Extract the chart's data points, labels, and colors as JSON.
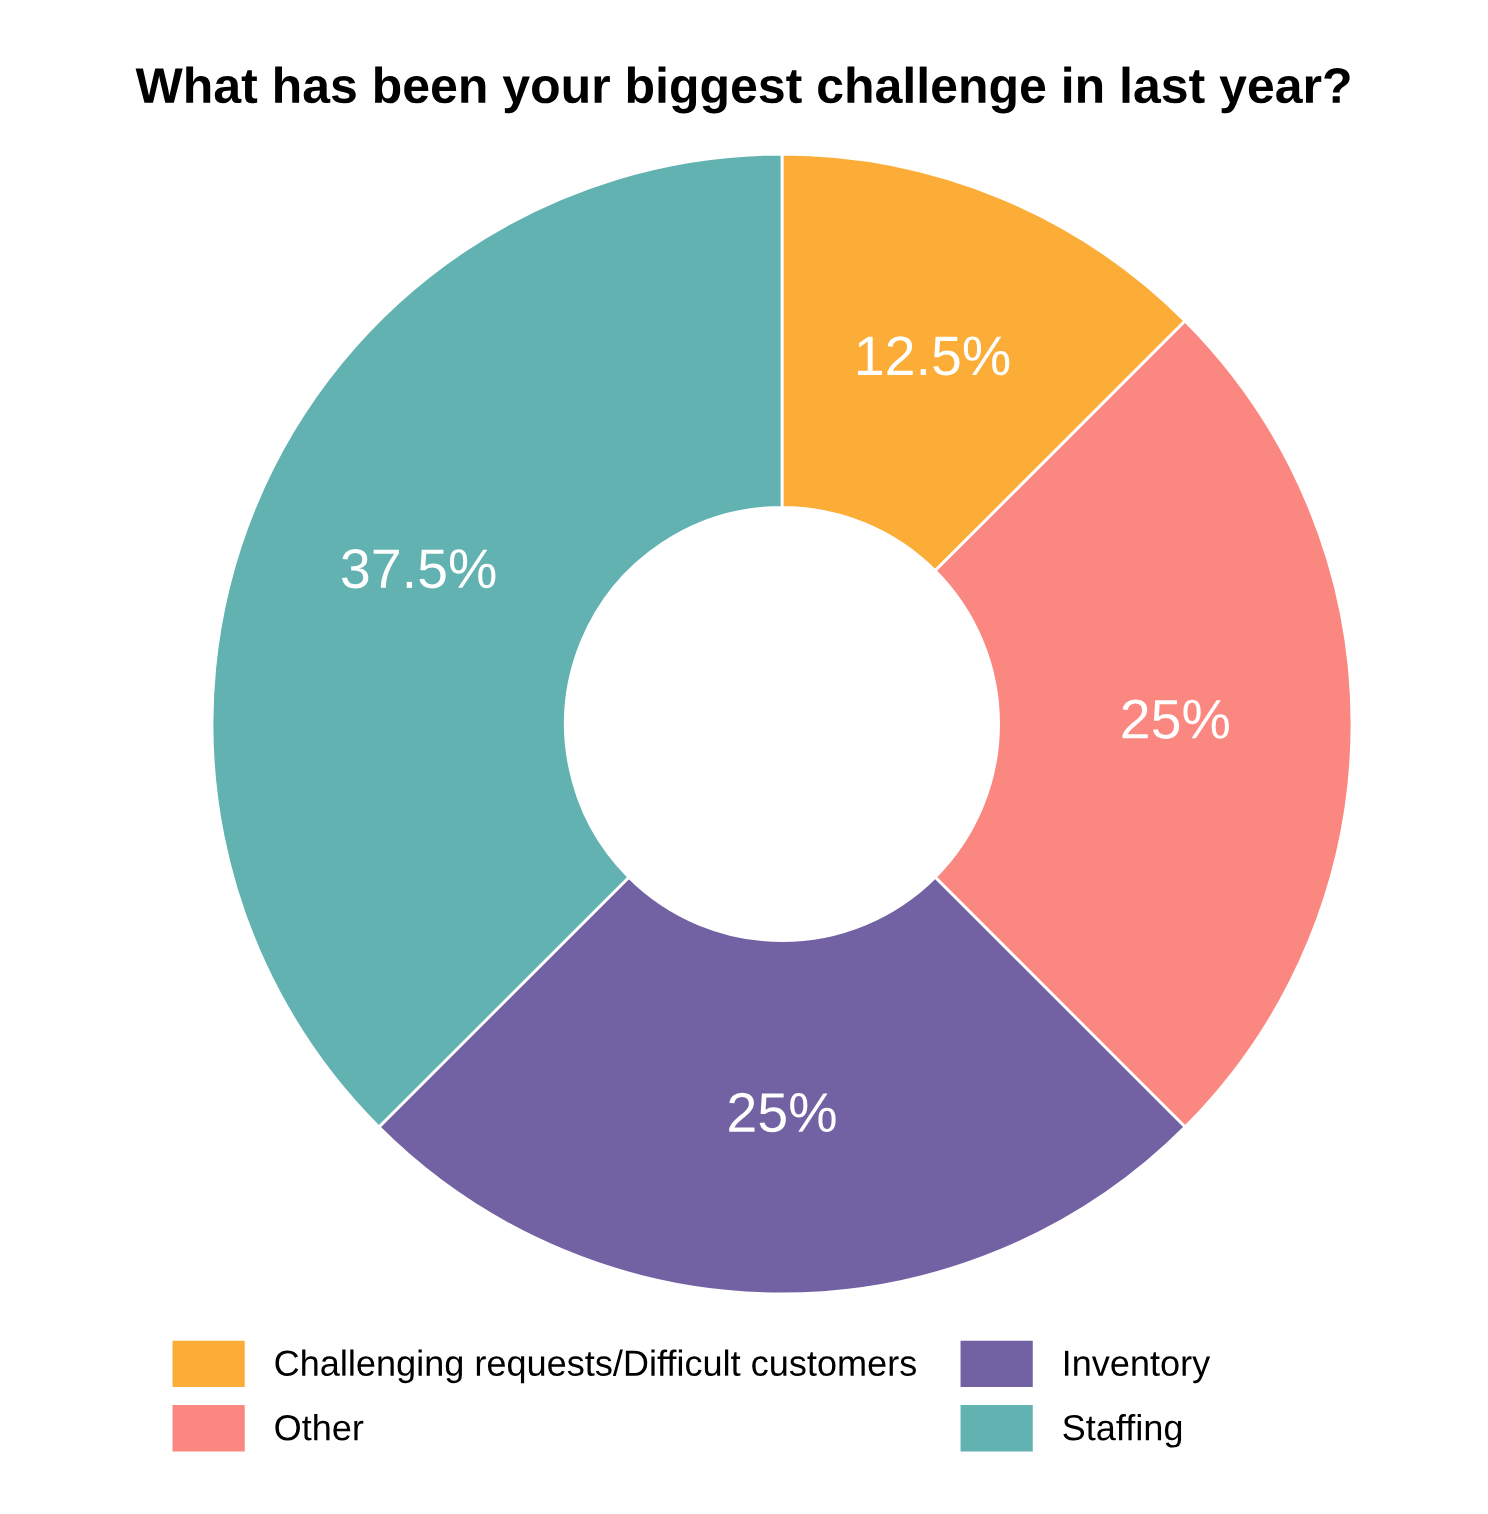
{
  "chart_data": {
    "type": "donut",
    "title": "What has been your biggest challenge in last year?",
    "categories": [
      "Challenging requests/Difficult customers",
      "Other",
      "Inventory",
      "Staffing"
    ],
    "values": [
      12.5,
      25,
      25,
      37.5
    ],
    "colors": [
      "#fbad38",
      "#fa8880",
      "#7262a3",
      "#63b2b2"
    ],
    "value_labels": [
      "12.5%",
      "25%",
      "25%",
      "37.5%"
    ],
    "legend": "bottom left"
  }
}
